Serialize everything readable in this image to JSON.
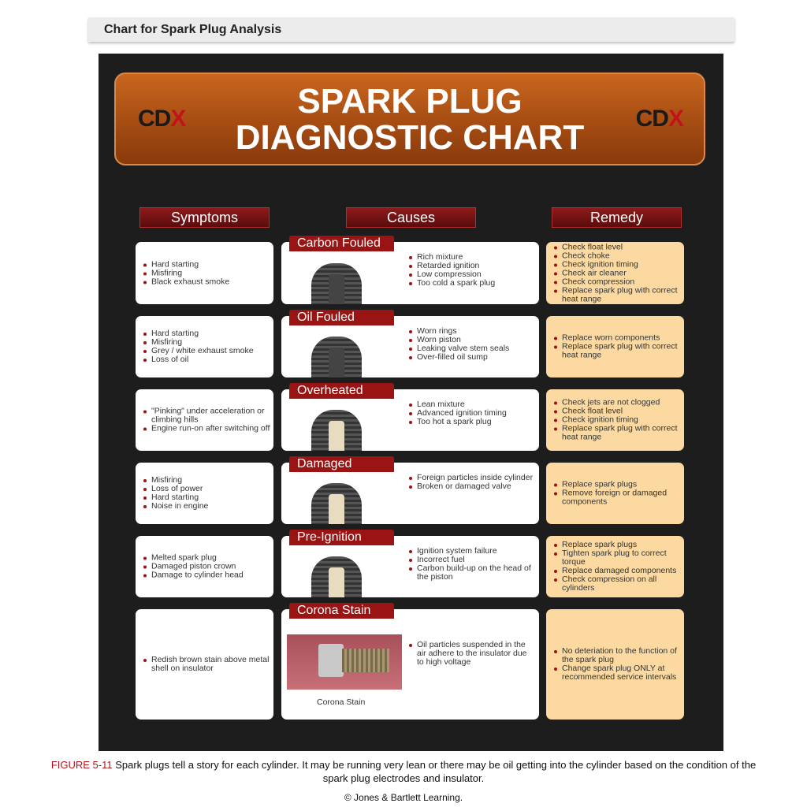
{
  "header": {
    "title": "Chart for Spark Plug Analysis"
  },
  "banner": {
    "logo_left": "CD",
    "logo_mark": "X",
    "title_line1": "SPARK PLUG",
    "title_line2": "DIAGNOSTIC CHART"
  },
  "columns": [
    "Symptoms",
    "Causes",
    "Remedy"
  ],
  "rows": [
    {
      "label": "Carbon Fouled",
      "symptoms": [
        "Hard starting",
        "Misfiring",
        "Black exhaust smoke"
      ],
      "causes": [
        "Rich mixture",
        "Retarded ignition",
        "Low compression",
        "Too cold a spark plug"
      ],
      "remedy": [
        "Check float level",
        "Check choke",
        "Check ignition timing",
        "Check air cleaner",
        "Check compression",
        "Replace spark plug with correct heat range"
      ]
    },
    {
      "label": "Oil Fouled",
      "symptoms": [
        "Hard starting",
        "Misfiring",
        "Grey / white exhaust smoke",
        "Loss of oil"
      ],
      "causes": [
        "Worn rings",
        "Worn piston",
        "Leaking valve stem seals",
        "Over-filled oil sump"
      ],
      "remedy": [
        "Replace worn components",
        "Replace spark plug with correct heat range"
      ]
    },
    {
      "label": "Overheated",
      "symptoms": [
        "\"Pinking\" under acceleration or climbing hills",
        "Engine run-on after switching off"
      ],
      "causes": [
        "Lean mixture",
        "Advanced ignition timing",
        "Too hot a spark plug"
      ],
      "remedy": [
        "Check jets are not clogged",
        "Check float level",
        "Check ignition timing",
        "Replace spark plug with correct heat range"
      ]
    },
    {
      "label": "Damaged",
      "symptoms": [
        "Misfiring",
        "Loss of power",
        "Hard starting",
        "Noise in engine"
      ],
      "causes": [
        "Foreign particles inside cylinder",
        "Broken or damaged valve"
      ],
      "remedy": [
        "Replace spark plugs",
        "Remove foreign or damaged components"
      ]
    },
    {
      "label": "Pre-Ignition",
      "symptoms": [
        "Melted spark plug",
        "Damaged piston crown",
        "Damage to cylinder head"
      ],
      "causes": [
        "Ignition system failure",
        "Incorrect fuel",
        "Carbon build-up on the head of the piston"
      ],
      "remedy": [
        "Replace spark plugs",
        "Tighten spark plug to correct torque",
        "Replace damaged components",
        "Check compression on all cylinders"
      ]
    },
    {
      "label": "Corona Stain",
      "symptoms": [
        "Redish brown stain above metal shell on insulator"
      ],
      "causes": [
        "Oil particles suspended in the air adhere to the insulator due to high voltage"
      ],
      "remedy": [
        "No deteriation to the function of the spark plug",
        "Change spark plug ONLY at recommended service intervals"
      ],
      "photo_label": "Corona Stain"
    }
  ],
  "caption": {
    "figure": "FIGURE 5-11",
    "text": " Spark plugs tell a story for each cylinder. It may be running very lean or there may be oil getting into the cylinder based on the condition of the spark plug electrodes and insulator."
  },
  "copyright": "© Jones & Bartlett Learning."
}
